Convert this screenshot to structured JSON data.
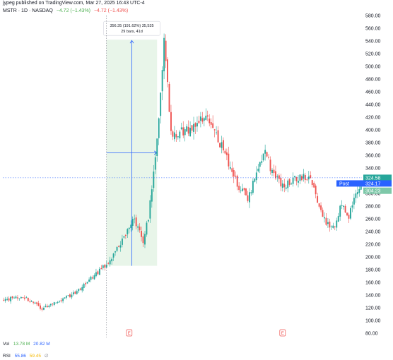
{
  "header": {
    "publisher": "jypeg published on TradingView.com, Mar 27, 2025 16:43 UTC-4",
    "symbol": "MSTR · 1D · NASDAQ",
    "change_1": "−4.72 (−1.43%)",
    "change_2": "−4.72 (−1.43%)"
  },
  "measure_note": {
    "line1": "356.35 (191.62%) 35,535",
    "line2": "29 bars, 41d"
  },
  "price_badges": {
    "last": "324.58",
    "post_label": "Post",
    "post": "324.17",
    "other": "304.23"
  },
  "events": [
    "E",
    "E"
  ],
  "volume": {
    "label": "Vol",
    "value1": "13.78 M",
    "value2": "20.82 M"
  },
  "rsi": {
    "label": "RSI",
    "value1": "55.86",
    "value2": "59.45",
    "value3": "∅"
  },
  "colors": {
    "up": "#26a69a",
    "down": "#ef5350",
    "measure_fill": "#e8f5e9",
    "measure_line": "#2962ff",
    "badge_blue": "#2962ff",
    "badge_green": "#26a69a"
  },
  "chart_data": {
    "type": "candlestick",
    "y_axis": {
      "min": 80,
      "max": 580,
      "step": 20,
      "tick_labels": [
        "80.00",
        "100.00",
        "120.00",
        "140.00",
        "160.00",
        "180.00",
        "200.00",
        "220.00",
        "240.00",
        "260.00",
        "280.00",
        "300.00",
        "320.00",
        "340.00",
        "360.00",
        "380.00",
        "400.00",
        "420.00",
        "440.00",
        "460.00",
        "480.00",
        "500.00",
        "520.00",
        "540.00",
        "560.00",
        "580.00"
      ]
    },
    "grid": false,
    "measure": {
      "start_price": 186,
      "end_price": 542,
      "mid_price": 364,
      "start_bar": 59,
      "end_bar": 88
    },
    "last_price": 324.58,
    "post_price": 324.17,
    "other_price": 304.23,
    "event_bars": [
      72,
      160
    ],
    "wave_points": [
      [
        0,
        132
      ],
      [
        10,
        138
      ],
      [
        16,
        130
      ],
      [
        22,
        118
      ],
      [
        30,
        128
      ],
      [
        40,
        142
      ],
      [
        48,
        160
      ],
      [
        56,
        182
      ],
      [
        62,
        196
      ],
      [
        70,
        238
      ],
      [
        75,
        260
      ],
      [
        80,
        224
      ],
      [
        83,
        262
      ],
      [
        86,
        330
      ],
      [
        89,
        420
      ],
      [
        92,
        540
      ],
      [
        96,
        395
      ],
      [
        106,
        400
      ],
      [
        116,
        420
      ],
      [
        126,
        370
      ],
      [
        134,
        315
      ],
      [
        140,
        292
      ],
      [
        146,
        340
      ],
      [
        150,
        372
      ],
      [
        154,
        330
      ],
      [
        159,
        315
      ],
      [
        164,
        316
      ],
      [
        170,
        326
      ],
      [
        176,
        327
      ],
      [
        182,
        270
      ],
      [
        186,
        250
      ],
      [
        190,
        244
      ],
      [
        194,
        285
      ],
      [
        198,
        264
      ],
      [
        202,
        300
      ],
      [
        205,
        305
      ]
    ]
  }
}
